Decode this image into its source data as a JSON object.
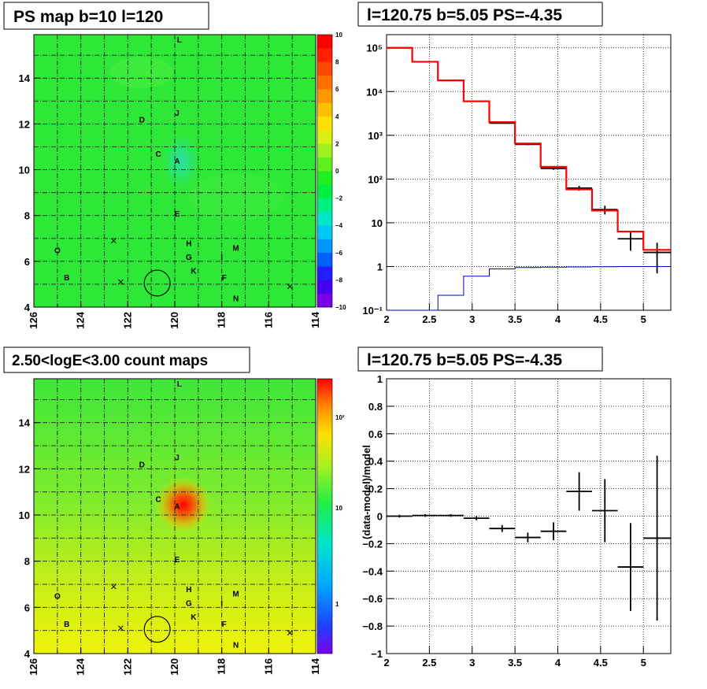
{
  "chart_data": [
    {
      "type": "heatmap",
      "title": "PS map b=10 l=120",
      "x_ticks": [
        "126",
        "124",
        "122",
        "120",
        "118",
        "116",
        "114"
      ],
      "y_ticks": [
        "4",
        "6",
        "8",
        "10",
        "12",
        "14"
      ],
      "xlim": [
        126,
        114
      ],
      "ylim": [
        4,
        15.9
      ],
      "colorbar_ticks": [
        "10",
        "8",
        "6",
        "4",
        "2",
        "0",
        "−2",
        "−4",
        "−6",
        "−8",
        "−10"
      ],
      "zlim": [
        -10,
        10
      ],
      "labels": [
        {
          "text": "L",
          "l": 119.8,
          "b": 15.7
        },
        {
          "text": "J",
          "l": 119.9,
          "b": 12.5
        },
        {
          "text": "D",
          "l": 121.4,
          "b": 12.2
        },
        {
          "text": "C",
          "l": 120.7,
          "b": 10.7
        },
        {
          "text": "A",
          "l": 119.9,
          "b": 10.4
        },
        {
          "text": "E",
          "l": 119.9,
          "b": 8.1
        },
        {
          "text": "H",
          "l": 119.4,
          "b": 6.8
        },
        {
          "text": "M",
          "l": 117.4,
          "b": 6.6
        },
        {
          "text": "G",
          "l": 119.4,
          "b": 6.2
        },
        {
          "text": "I",
          "l": 118.0,
          "b": 6.2
        },
        {
          "text": "K",
          "l": 119.2,
          "b": 5.6
        },
        {
          "text": "F",
          "l": 117.9,
          "b": 5.3
        },
        {
          "text": "N",
          "l": 117.4,
          "b": 4.4
        },
        {
          "text": "O",
          "l": 125.0,
          "b": 6.5
        },
        {
          "text": "B",
          "l": 124.6,
          "b": 5.3
        }
      ],
      "crosses": [
        {
          "l": 122.6,
          "b": 6.9
        },
        {
          "l": 122.3,
          "b": 5.1
        },
        {
          "l": 115.1,
          "b": 4.9
        }
      ],
      "circle": {
        "l": 120.75,
        "b": 5.05,
        "r": 0.55
      }
    },
    {
      "type": "line",
      "title": "l=120.75 b=5.05 PS=-4.35",
      "x_ticks": [
        "2",
        "2.5",
        "3",
        "3.5",
        "4",
        "4.5",
        "5"
      ],
      "y_ticks": [
        "10⁻¹",
        "1",
        "10",
        "10²",
        "10³",
        "10⁴",
        "10⁵"
      ],
      "xlim": [
        2.0,
        5.32
      ],
      "ylim": [
        0.1,
        200000
      ],
      "log_y": true,
      "grid": true,
      "bin_edges": [
        2.0,
        2.3,
        2.6,
        2.9,
        3.2,
        3.5,
        3.8,
        4.1,
        4.4,
        4.7,
        5.0,
        5.32
      ],
      "series": [
        {
          "color": "#ff0000",
          "values": [
            100000,
            48000,
            18000,
            6000,
            2000,
            650,
            190,
            58,
            19,
            6.3,
            2.4
          ]
        },
        {
          "color": "#000000",
          "values": [
            100000,
            48000,
            18000,
            6000,
            1900,
            620,
            175,
            62,
            20,
            4.3,
            2.1
          ],
          "errors": [
            0,
            0,
            0,
            0,
            50,
            25,
            13,
            8,
            4.5,
            2.0,
            1.4
          ]
        },
        {
          "color": "#0000cc",
          "values": [
            0.05,
            0.08,
            0.22,
            0.6,
            0.88,
            0.95,
            0.97,
            0.98,
            0.99,
            1.0,
            1.0
          ]
        }
      ]
    },
    {
      "type": "heatmap",
      "title": "2.50<logE<3.00 count maps",
      "x_ticks": [
        "126",
        "124",
        "122",
        "120",
        "118",
        "116",
        "114"
      ],
      "y_ticks": [
        "4",
        "6",
        "8",
        "10",
        "12",
        "14"
      ],
      "xlim": [
        126,
        114
      ],
      "ylim": [
        4,
        15.9
      ],
      "colorbar_ticks": [
        "10²",
        "10",
        "1"
      ],
      "zlog": true,
      "labels": [
        {
          "text": "L",
          "l": 119.8,
          "b": 15.7
        },
        {
          "text": "J",
          "l": 119.9,
          "b": 12.5
        },
        {
          "text": "D",
          "l": 121.4,
          "b": 12.2
        },
        {
          "text": "C",
          "l": 120.7,
          "b": 10.7
        },
        {
          "text": "A",
          "l": 119.9,
          "b": 10.4
        },
        {
          "text": "E",
          "l": 119.9,
          "b": 8.1
        },
        {
          "text": "H",
          "l": 119.4,
          "b": 6.8
        },
        {
          "text": "M",
          "l": 117.4,
          "b": 6.6
        },
        {
          "text": "G",
          "l": 119.4,
          "b": 6.2
        },
        {
          "text": "I",
          "l": 118.0,
          "b": 6.2
        },
        {
          "text": "K",
          "l": 119.2,
          "b": 5.6
        },
        {
          "text": "F",
          "l": 117.9,
          "b": 5.3
        },
        {
          "text": "N",
          "l": 117.4,
          "b": 4.4
        },
        {
          "text": "O",
          "l": 125.0,
          "b": 6.5
        },
        {
          "text": "B",
          "l": 124.6,
          "b": 5.3
        }
      ],
      "crosses": [
        {
          "l": 122.6,
          "b": 6.9
        },
        {
          "l": 122.3,
          "b": 5.1
        },
        {
          "l": 115.1,
          "b": 4.9
        }
      ],
      "circle": {
        "l": 120.75,
        "b": 5.05,
        "r": 0.55
      }
    },
    {
      "type": "scatter",
      "title": "l=120.75 b=5.05 PS=-4.35",
      "ylabel": "(data-model)/model",
      "x_ticks": [
        "2",
        "2.5",
        "3",
        "3.5",
        "4",
        "4.5",
        "5"
      ],
      "y_ticks": [
        "−1",
        "−0.8",
        "−0.6",
        "−0.4",
        "−0.2",
        "0",
        "0.2",
        "0.4",
        "0.6",
        "0.8",
        "1"
      ],
      "xlim": [
        2.0,
        5.32
      ],
      "ylim": [
        -1,
        1
      ],
      "grid": true,
      "points": [
        {
          "x": 2.15,
          "y": 0.0,
          "xerr": 0.15,
          "yerr": 0.01
        },
        {
          "x": 2.45,
          "y": 0.005,
          "xerr": 0.15,
          "yerr": 0.01
        },
        {
          "x": 2.75,
          "y": 0.005,
          "xerr": 0.15,
          "yerr": 0.01
        },
        {
          "x": 3.05,
          "y": -0.015,
          "xerr": 0.15,
          "yerr": 0.015
        },
        {
          "x": 3.35,
          "y": -0.09,
          "xerr": 0.15,
          "yerr": 0.025
        },
        {
          "x": 3.65,
          "y": -0.155,
          "xerr": 0.15,
          "yerr": 0.035
        },
        {
          "x": 3.95,
          "y": -0.11,
          "xerr": 0.15,
          "yerr": 0.065
        },
        {
          "x": 4.25,
          "y": 0.18,
          "xerr": 0.15,
          "yerr": 0.14
        },
        {
          "x": 4.55,
          "y": 0.04,
          "xerr": 0.15,
          "yerr": 0.23
        },
        {
          "x": 4.85,
          "y": -0.37,
          "xerr": 0.15,
          "yerr": 0.32
        },
        {
          "x": 5.16,
          "y": -0.16,
          "xerr": 0.16,
          "yerr": 0.6
        }
      ]
    }
  ]
}
